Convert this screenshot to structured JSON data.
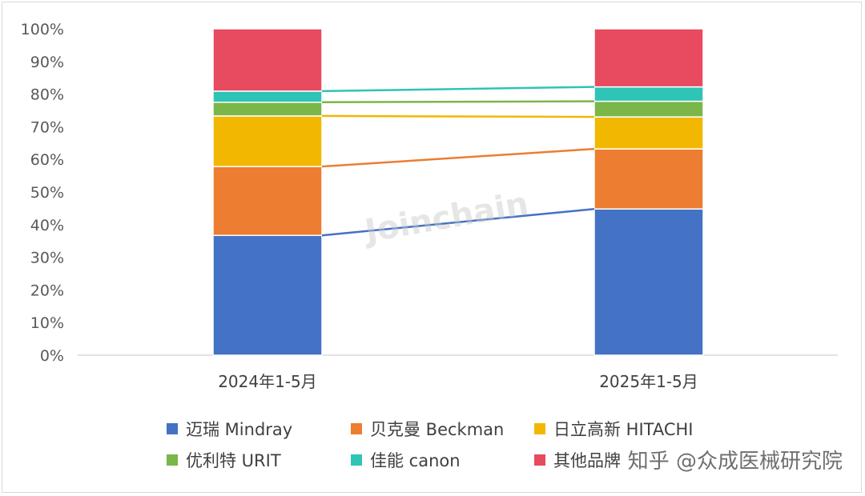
{
  "chart_data": {
    "type": "bar",
    "stacked": true,
    "percent_stacked": true,
    "categories": [
      "2024年1-5月",
      "2025年1-5月"
    ],
    "series": [
      {
        "name": "迈瑞 Mindray",
        "color": "#4472C4",
        "values": [
          36.7,
          44.8
        ]
      },
      {
        "name": "贝克曼 Beckman",
        "color": "#ED7D31",
        "values": [
          21.1,
          18.4
        ]
      },
      {
        "name": "日立高新 HITACHI",
        "color": "#F2B701",
        "values": [
          15.5,
          9.8
        ]
      },
      {
        "name": "优利特 URIT",
        "color": "#7AB648",
        "values": [
          4.2,
          4.8
        ]
      },
      {
        "name": "佳能 canon",
        "color": "#2EC4B6",
        "values": [
          3.4,
          4.4
        ]
      },
      {
        "name": "其他品牌",
        "color": "#E84A5F",
        "values": [
          19.1,
          17.8
        ]
      }
    ],
    "yticks": [
      "0%",
      "10%",
      "20%",
      "30%",
      "40%",
      "50%",
      "60%",
      "70%",
      "80%",
      "90%",
      "100%"
    ],
    "ylim": [
      0,
      100
    ],
    "connector_lines": true,
    "grid": false,
    "legend": "bottom"
  },
  "watermark": "Joinchain",
  "credit": "知乎 @众成医械研究院"
}
